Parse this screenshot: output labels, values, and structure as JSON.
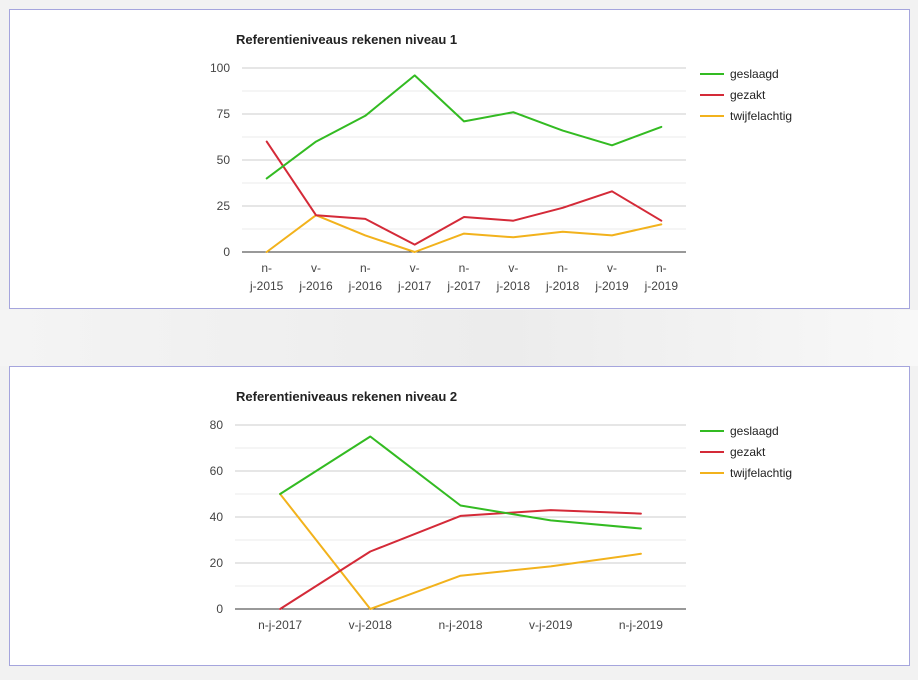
{
  "colors": {
    "geslaagd": "#33bb22",
    "gezakt": "#d42a38",
    "twijfelachtig": "#f2b21c"
  },
  "chart_data": [
    {
      "type": "line",
      "title": "Referentieniveaus rekenen niveau 1",
      "categories": [
        [
          "n-",
          "j-2015"
        ],
        [
          "v-",
          "j-2016"
        ],
        [
          "n-",
          "j-2016"
        ],
        [
          "v-",
          "j-2017"
        ],
        [
          "n-",
          "j-2017"
        ],
        [
          "v-",
          "j-2018"
        ],
        [
          "n-",
          "j-2018"
        ],
        [
          "v-",
          "j-2019"
        ],
        [
          "n-",
          "j-2019"
        ]
      ],
      "series": [
        {
          "name": "geslaagd",
          "color": "#33bb22",
          "values": [
            40,
            60,
            74,
            96,
            71,
            76,
            66,
            58,
            68
          ]
        },
        {
          "name": "gezakt",
          "color": "#d42a38",
          "values": [
            60,
            20,
            18,
            4,
            19,
            17,
            24,
            33,
            17
          ]
        },
        {
          "name": "twijfelachtig",
          "color": "#f2b21c",
          "values": [
            0,
            20,
            9,
            0,
            10,
            8,
            11,
            9,
            15
          ]
        }
      ],
      "ylim": [
        0,
        100
      ],
      "yticks": [
        0,
        25,
        50,
        75,
        100
      ],
      "grid": true,
      "legend": "right"
    },
    {
      "type": "line",
      "title": "Referentieniveaus rekenen niveau 2",
      "categories": [
        [
          "n-j-2017"
        ],
        [
          "v-j-2018"
        ],
        [
          "n-j-2018"
        ],
        [
          "v-j-2019"
        ],
        [
          "n-j-2019"
        ]
      ],
      "series": [
        {
          "name": "geslaagd",
          "color": "#33bb22",
          "values": [
            50,
            75,
            45,
            38.5,
            35
          ]
        },
        {
          "name": "gezakt",
          "color": "#d42a38",
          "values": [
            0,
            25,
            40.5,
            43,
            41.5
          ]
        },
        {
          "name": "twijfelachtig",
          "color": "#f2b21c",
          "values": [
            50,
            0,
            14.5,
            18.5,
            24
          ]
        }
      ],
      "ylim": [
        0,
        80
      ],
      "yticks": [
        0,
        20,
        40,
        60,
        80
      ],
      "grid": true,
      "legend": "right"
    }
  ]
}
